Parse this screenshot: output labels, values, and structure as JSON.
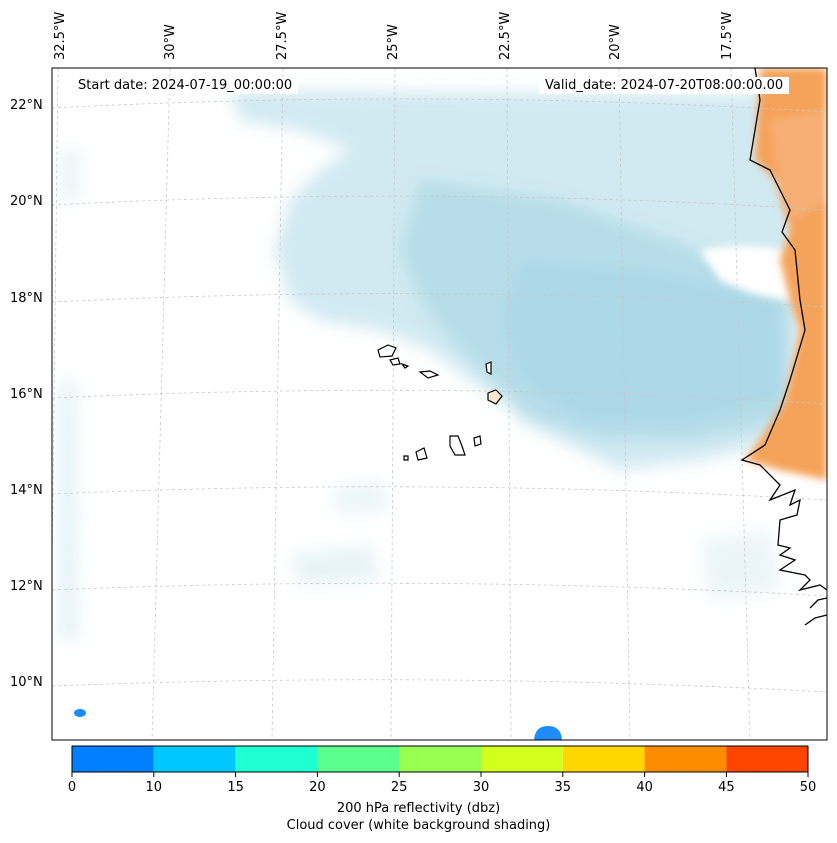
{
  "header": {
    "start_date": "Start date: 2024-07-19_00:00:00",
    "valid_date": "Valid_date: 2024-07-20T08:00:00.00"
  },
  "axes": {
    "longitude_labels": [
      "32.5°W",
      "30°W",
      "27.5°W",
      "25°W",
      "22.5°W",
      "20°W",
      "17.5°W"
    ],
    "latitude_labels": [
      "22°N",
      "20°N",
      "18°N",
      "16°N",
      "14°N",
      "12°N",
      "10°N"
    ]
  },
  "colorbar": {
    "ticks": [
      "0",
      "10",
      "15",
      "20",
      "25",
      "30",
      "35",
      "40",
      "45",
      "50"
    ],
    "colors": [
      "#0080ff",
      "#00c8ff",
      "#1effd2",
      "#5aff8c",
      "#96ff50",
      "#d2ff1e",
      "#ffd700",
      "#ff8c00",
      "#ff4500"
    ],
    "label": "200 hPa reflectivity (dbz)",
    "sublabel": "Cloud cover (white background shading)"
  }
}
